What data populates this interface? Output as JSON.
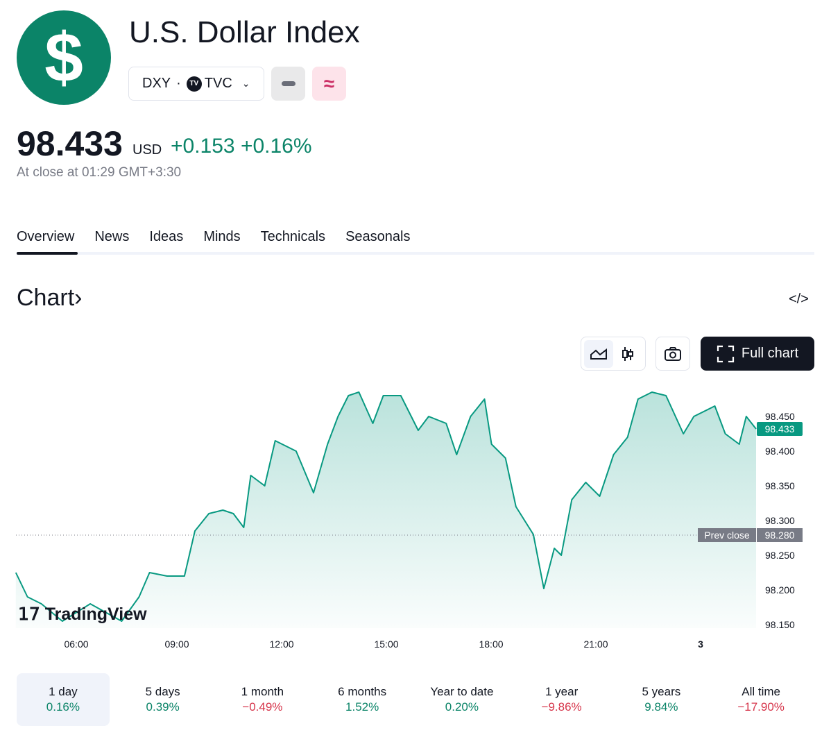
{
  "header": {
    "logo_symbol": "$",
    "title": "U.S. Dollar Index",
    "ticker": "DXY",
    "separator": "·",
    "exchange": "TVC",
    "exchange_logo": "TV"
  },
  "quote": {
    "price": "98.433",
    "currency": "USD",
    "change": "+0.153",
    "change_pct": "+0.16%",
    "close_text": "At close at 01:29 GMT+3:30",
    "up_color": "#0b8468",
    "down_color": "#d6344a"
  },
  "tabs": [
    {
      "label": "Overview",
      "selected": true
    },
    {
      "label": "News"
    },
    {
      "label": "Ideas"
    },
    {
      "label": "Minds"
    },
    {
      "label": "Technicals"
    },
    {
      "label": "Seasonals"
    }
  ],
  "chart_section": {
    "title": "Chart",
    "full_chart_label": "Full chart",
    "embed_icon": "code-icon",
    "watermark": "TradingView"
  },
  "chart_data": {
    "type": "area",
    "ylim": [
      98.15,
      98.46
    ],
    "yticks": [
      "98.450",
      "98.400",
      "98.350",
      "98.300",
      "98.250",
      "98.200",
      "98.150"
    ],
    "xticks": [
      "06:00",
      "09:00",
      "12:00",
      "15:00",
      "18:00",
      "21:00",
      "3"
    ],
    "last_value": "98.433",
    "prev_close": "98.280",
    "prev_close_label": "Prev close",
    "line_color": "#089981",
    "x": [
      "04:16",
      "04:36",
      "05:00",
      "05:36",
      "06:24",
      "07:18",
      "07:48",
      "08:06",
      "08:36",
      "09:06",
      "09:24",
      "09:48",
      "10:12",
      "10:30",
      "10:48",
      "11:00",
      "11:24",
      "11:42",
      "12:18",
      "12:48",
      "13:12",
      "13:30",
      "13:48",
      "14:06",
      "14:30",
      "14:48",
      "15:18",
      "15:48",
      "16:06",
      "16:36",
      "16:54",
      "17:18",
      "17:42",
      "17:54",
      "18:18",
      "18:36",
      "19:06",
      "19:24",
      "19:42",
      "19:54",
      "20:12",
      "20:36",
      "21:00",
      "21:24",
      "21:48",
      "22:06",
      "22:30",
      "22:54",
      "23:24",
      "23:42",
      "00:18",
      "00:36",
      "01:00",
      "01:12",
      "01:29"
    ],
    "values": [
      98.226,
      98.191,
      98.181,
      98.156,
      98.181,
      98.156,
      98.191,
      98.226,
      98.221,
      98.221,
      98.286,
      98.311,
      98.316,
      98.311,
      98.291,
      98.366,
      98.351,
      98.416,
      98.401,
      98.341,
      98.411,
      98.451,
      98.481,
      98.486,
      98.441,
      98.481,
      98.481,
      98.431,
      98.451,
      98.441,
      98.396,
      98.451,
      98.476,
      98.411,
      98.391,
      98.321,
      98.281,
      98.203,
      98.261,
      98.251,
      98.331,
      98.356,
      98.336,
      98.396,
      98.421,
      98.476,
      98.486,
      98.481,
      98.426,
      98.451,
      98.466,
      98.426,
      98.411,
      98.451,
      98.433
    ]
  },
  "ranges": [
    {
      "label": "1 day",
      "pct": "0.16%",
      "up": true
    },
    {
      "label": "5 days",
      "pct": "0.39%",
      "up": true
    },
    {
      "label": "1 month",
      "pct": "−0.49%",
      "up": false
    },
    {
      "label": "6 months",
      "pct": "1.52%",
      "up": true
    },
    {
      "label": "Year to date",
      "pct": "0.20%",
      "up": true
    },
    {
      "label": "1 year",
      "pct": "−9.86%",
      "up": false
    },
    {
      "label": "5 years",
      "pct": "9.84%",
      "up": true
    },
    {
      "label": "All time",
      "pct": "−17.90%",
      "up": false
    }
  ]
}
